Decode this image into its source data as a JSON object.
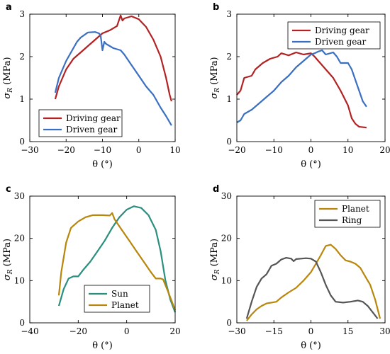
{
  "chart_data": [
    {
      "panel": "a",
      "type": "line",
      "xlabel": "θ (°)",
      "ylabel": "σ_R (MPa)",
      "xlim": [
        -30,
        10
      ],
      "ylim": [
        0,
        3
      ],
      "xticks": [
        -30,
        -20,
        -10,
        0,
        10
      ],
      "yticks": [
        0,
        1,
        2,
        3
      ],
      "legend": "bottom-left",
      "series": [
        {
          "name": "Driving gear",
          "color": "#b22222",
          "points": [
            [
              -23,
              1.0
            ],
            [
              -22,
              1.3
            ],
            [
              -20,
              1.7
            ],
            [
              -18,
              1.95
            ],
            [
              -16,
              2.1
            ],
            [
              -14,
              2.25
            ],
            [
              -12,
              2.4
            ],
            [
              -10,
              2.55
            ],
            [
              -8,
              2.62
            ],
            [
              -6,
              2.72
            ],
            [
              -5,
              2.97
            ],
            [
              -4.5,
              2.85
            ],
            [
              -4,
              2.9
            ],
            [
              -2,
              2.95
            ],
            [
              0,
              2.88
            ],
            [
              2,
              2.7
            ],
            [
              4,
              2.4
            ],
            [
              6,
              2.0
            ],
            [
              7.5,
              1.5
            ],
            [
              8.5,
              1.1
            ],
            [
              9,
              0.95
            ]
          ]
        },
        {
          "name": "Driven gear",
          "color": "#3b6fc2",
          "points": [
            [
              -23,
              1.15
            ],
            [
              -22,
              1.5
            ],
            [
              -20,
              1.9
            ],
            [
              -18,
              2.2
            ],
            [
              -17,
              2.35
            ],
            [
              -16,
              2.45
            ],
            [
              -14,
              2.57
            ],
            [
              -12,
              2.58
            ],
            [
              -11,
              2.55
            ],
            [
              -10.5,
              2.5
            ],
            [
              -10,
              2.15
            ],
            [
              -9.5,
              2.35
            ],
            [
              -9,
              2.3
            ],
            [
              -7,
              2.2
            ],
            [
              -5,
              2.15
            ],
            [
              -4,
              2.05
            ],
            [
              -2,
              1.8
            ],
            [
              0,
              1.55
            ],
            [
              2,
              1.3
            ],
            [
              4,
              1.1
            ],
            [
              6,
              0.8
            ],
            [
              7.5,
              0.6
            ],
            [
              9,
              0.38
            ]
          ]
        }
      ]
    },
    {
      "panel": "b",
      "type": "line",
      "xlabel": "θ (°)",
      "ylabel": "σ_R (MPa)",
      "xlim": [
        -20,
        20
      ],
      "ylim": [
        0,
        3
      ],
      "xticks": [
        -20,
        -10,
        0,
        10,
        20
      ],
      "yticks": [
        0,
        1,
        2,
        3
      ],
      "legend": "top-right",
      "series": [
        {
          "name": "Driving gear",
          "color": "#b22222",
          "points": [
            [
              -20,
              1.1
            ],
            [
              -19,
              1.2
            ],
            [
              -18,
              1.5
            ],
            [
              -16,
              1.55
            ],
            [
              -15,
              1.7
            ],
            [
              -13,
              1.85
            ],
            [
              -11,
              1.95
            ],
            [
              -9,
              2.0
            ],
            [
              -8,
              2.08
            ],
            [
              -6,
              2.03
            ],
            [
              -4,
              2.1
            ],
            [
              -2,
              2.05
            ],
            [
              0,
              2.08
            ],
            [
              1,
              2.0
            ],
            [
              2,
              1.9
            ],
            [
              4,
              1.7
            ],
            [
              6,
              1.5
            ],
            [
              8,
              1.2
            ],
            [
              10,
              0.85
            ],
            [
              11,
              0.55
            ],
            [
              12,
              0.42
            ],
            [
              13,
              0.35
            ],
            [
              15,
              0.33
            ]
          ]
        },
        {
          "name": "Driven gear",
          "color": "#3b6fc2",
          "points": [
            [
              -20,
              0.45
            ],
            [
              -19,
              0.5
            ],
            [
              -18,
              0.65
            ],
            [
              -16,
              0.75
            ],
            [
              -14,
              0.9
            ],
            [
              -12,
              1.05
            ],
            [
              -10,
              1.2
            ],
            [
              -8,
              1.4
            ],
            [
              -6,
              1.55
            ],
            [
              -4,
              1.75
            ],
            [
              -2,
              1.9
            ],
            [
              0,
              2.05
            ],
            [
              1,
              2.08
            ],
            [
              2,
              2.12
            ],
            [
              3,
              2.15
            ],
            [
              4,
              2.05
            ],
            [
              6,
              2.1
            ],
            [
              7,
              2.0
            ],
            [
              8,
              1.85
            ],
            [
              10,
              1.85
            ],
            [
              11,
              1.7
            ],
            [
              12,
              1.45
            ],
            [
              13,
              1.2
            ],
            [
              14,
              0.95
            ],
            [
              15,
              0.82
            ]
          ]
        }
      ]
    },
    {
      "panel": "c",
      "type": "line",
      "xlabel": "θ (°)",
      "ylabel": "σ_R (MPa)",
      "xlim": [
        -40,
        20
      ],
      "ylim": [
        0,
        30
      ],
      "xticks": [
        -40,
        -20,
        0,
        20
      ],
      "yticks": [
        0,
        10,
        20,
        30
      ],
      "legend": "bottom-left",
      "series": [
        {
          "name": "Sun",
          "color": "#2a8f7f",
          "points": [
            [
              -28,
              4
            ],
            [
              -26,
              8
            ],
            [
              -24,
              10.5
            ],
            [
              -22,
              11
            ],
            [
              -20,
              11
            ],
            [
              -18,
              12.5
            ],
            [
              -15,
              14.5
            ],
            [
              -12,
              17
            ],
            [
              -9,
              19.5
            ],
            [
              -6,
              22.5
            ],
            [
              -3,
              25
            ],
            [
              0,
              26.8
            ],
            [
              3,
              27.6
            ],
            [
              6,
              27.2
            ],
            [
              9,
              25.5
            ],
            [
              12,
              22
            ],
            [
              14,
              17
            ],
            [
              16,
              10
            ],
            [
              18,
              5.5
            ],
            [
              20,
              2.5
            ]
          ]
        },
        {
          "name": "Planet",
          "color": "#b8860b",
          "points": [
            [
              -28,
              6.5
            ],
            [
              -27,
              12
            ],
            [
              -25,
              19
            ],
            [
              -23,
              22.5
            ],
            [
              -20,
              24
            ],
            [
              -17,
              25
            ],
            [
              -14,
              25.5
            ],
            [
              -10,
              25.5
            ],
            [
              -7,
              25.4
            ],
            [
              -6,
              26
            ],
            [
              -5,
              24.5
            ],
            [
              -2,
              22
            ],
            [
              1,
              19.5
            ],
            [
              4,
              17
            ],
            [
              7,
              14.5
            ],
            [
              10,
              12
            ],
            [
              12,
              10.5
            ],
            [
              14,
              10.5
            ],
            [
              15,
              10.3
            ],
            [
              17,
              7.5
            ],
            [
              19,
              4.5
            ],
            [
              20,
              3
            ]
          ]
        }
      ]
    },
    {
      "panel": "d",
      "type": "line",
      "xlabel": "θ (°)",
      "ylabel": "σ_R (MPa)",
      "xlim": [
        -30,
        30
      ],
      "ylim": [
        0,
        30
      ],
      "xticks": [
        -30,
        -15,
        0,
        15,
        30
      ],
      "yticks": [
        0,
        10,
        20,
        30
      ],
      "legend": "top-right",
      "series": [
        {
          "name": "Planet",
          "color": "#b8860b",
          "points": [
            [
              -26,
              0.5
            ],
            [
              -24,
              2
            ],
            [
              -22,
              3.2
            ],
            [
              -20,
              4
            ],
            [
              -18,
              4.6
            ],
            [
              -16,
              4.8
            ],
            [
              -14,
              5
            ],
            [
              -12,
              6
            ],
            [
              -9,
              7.2
            ],
            [
              -6,
              8.3
            ],
            [
              -3,
              10
            ],
            [
              0,
              12
            ],
            [
              2,
              14
            ],
            [
              4,
              16
            ],
            [
              6,
              18.2
            ],
            [
              8,
              18.5
            ],
            [
              10,
              17.5
            ],
            [
              12,
              16
            ],
            [
              14,
              14.8
            ],
            [
              16,
              14.5
            ],
            [
              18,
              14
            ],
            [
              20,
              13
            ],
            [
              22,
              11
            ],
            [
              24,
              9
            ],
            [
              26,
              5.5
            ],
            [
              28,
              1
            ]
          ]
        },
        {
          "name": "Ring",
          "color": "#555555",
          "points": [
            [
              -26,
              1
            ],
            [
              -24,
              5
            ],
            [
              -22,
              8.5
            ],
            [
              -20,
              10.5
            ],
            [
              -18,
              11.5
            ],
            [
              -16,
              13.5
            ],
            [
              -14,
              14
            ],
            [
              -12,
              15
            ],
            [
              -10,
              15.4
            ],
            [
              -8,
              15.2
            ],
            [
              -7,
              14.6
            ],
            [
              -6,
              15.1
            ],
            [
              -4,
              15.2
            ],
            [
              -2,
              15.3
            ],
            [
              0,
              15.2
            ],
            [
              2,
              14.5
            ],
            [
              4,
              12
            ],
            [
              6,
              9
            ],
            [
              8,
              6.5
            ],
            [
              10,
              5
            ],
            [
              13,
              4.8
            ],
            [
              16,
              5
            ],
            [
              19,
              5.3
            ],
            [
              21,
              5
            ],
            [
              23,
              4
            ],
            [
              25,
              2.5
            ],
            [
              27,
              1
            ]
          ]
        }
      ]
    }
  ]
}
